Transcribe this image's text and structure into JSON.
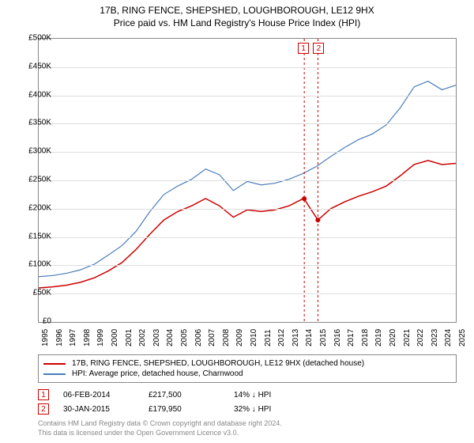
{
  "title": {
    "line1": "17B, RING FENCE, SHEPSHED, LOUGHBOROUGH, LE12 9HX",
    "line2": "Price paid vs. HM Land Registry's House Price Index (HPI)"
  },
  "chart": {
    "type": "line",
    "background_color": "#ffffff",
    "grid_color": "#dddddd",
    "border_color": "#888888",
    "x_years": [
      1995,
      1996,
      1997,
      1998,
      1999,
      2000,
      2001,
      2002,
      2003,
      2004,
      2005,
      2006,
      2007,
      2008,
      2009,
      2010,
      2011,
      2012,
      2013,
      2014,
      2015,
      2016,
      2017,
      2018,
      2019,
      2020,
      2021,
      2022,
      2023,
      2024,
      2025
    ],
    "x_min": 1995,
    "x_max": 2025,
    "y_min": 0,
    "y_max": 500000,
    "y_ticks": [
      0,
      50000,
      100000,
      150000,
      200000,
      250000,
      300000,
      350000,
      400000,
      450000,
      500000
    ],
    "y_tick_labels": [
      "£0",
      "£50K",
      "£100K",
      "£150K",
      "£200K",
      "£250K",
      "£300K",
      "£350K",
      "£400K",
      "£450K",
      "£500K"
    ],
    "series": [
      {
        "name": "property",
        "label": "17B, RING FENCE, SHEPSHED, LOUGHBOROUGH, LE12 9HX (detached house)",
        "color": "#cc0000",
        "line_width": 1.5,
        "data": [
          [
            1995,
            60000
          ],
          [
            1996,
            62000
          ],
          [
            1997,
            65000
          ],
          [
            1998,
            70000
          ],
          [
            1999,
            78000
          ],
          [
            2000,
            90000
          ],
          [
            2001,
            105000
          ],
          [
            2002,
            128000
          ],
          [
            2003,
            155000
          ],
          [
            2004,
            180000
          ],
          [
            2005,
            195000
          ],
          [
            2006,
            205000
          ],
          [
            2007,
            218000
          ],
          [
            2008,
            205000
          ],
          [
            2009,
            185000
          ],
          [
            2010,
            198000
          ],
          [
            2011,
            195000
          ],
          [
            2012,
            198000
          ],
          [
            2013,
            205000
          ],
          [
            2014,
            217500
          ],
          [
            2014.08,
            217500
          ],
          [
            2015.08,
            179950
          ],
          [
            2016,
            200000
          ],
          [
            2017,
            212000
          ],
          [
            2018,
            222000
          ],
          [
            2019,
            230000
          ],
          [
            2020,
            240000
          ],
          [
            2021,
            258000
          ],
          [
            2022,
            278000
          ],
          [
            2023,
            285000
          ],
          [
            2024,
            278000
          ],
          [
            2025,
            280000
          ]
        ]
      },
      {
        "name": "hpi",
        "label": "HPI: Average price, detached house, Charnwood",
        "color": "#4a7ebb",
        "line_width": 1.2,
        "data": [
          [
            1995,
            80000
          ],
          [
            1996,
            82000
          ],
          [
            1997,
            86000
          ],
          [
            1998,
            92000
          ],
          [
            1999,
            102000
          ],
          [
            2000,
            118000
          ],
          [
            2001,
            135000
          ],
          [
            2002,
            160000
          ],
          [
            2003,
            195000
          ],
          [
            2004,
            225000
          ],
          [
            2005,
            240000
          ],
          [
            2006,
            252000
          ],
          [
            2007,
            270000
          ],
          [
            2008,
            260000
          ],
          [
            2009,
            232000
          ],
          [
            2010,
            248000
          ],
          [
            2011,
            242000
          ],
          [
            2012,
            245000
          ],
          [
            2013,
            252000
          ],
          [
            2014,
            262000
          ],
          [
            2015,
            275000
          ],
          [
            2016,
            292000
          ],
          [
            2017,
            308000
          ],
          [
            2018,
            322000
          ],
          [
            2019,
            332000
          ],
          [
            2020,
            348000
          ],
          [
            2021,
            378000
          ],
          [
            2022,
            415000
          ],
          [
            2023,
            425000
          ],
          [
            2024,
            410000
          ],
          [
            2025,
            418000
          ]
        ]
      }
    ],
    "events": [
      {
        "n": "1",
        "year": 2014.1,
        "date": "06-FEB-2014",
        "price": "£217,500",
        "delta": "14% ↓ HPI",
        "point_y": 217500,
        "vline_color": "#cc0000"
      },
      {
        "n": "2",
        "year": 2015.08,
        "date": "30-JAN-2015",
        "price": "£179,950",
        "delta": "32% ↓ HPI",
        "point_y": 179950,
        "vline_color": "#cc0000"
      }
    ],
    "point_marker_color": "#cc0000",
    "point_marker_radius": 3
  },
  "legend": {
    "items": [
      {
        "color": "#cc0000",
        "label": "17B, RING FENCE, SHEPSHED, LOUGHBOROUGH, LE12 9HX (detached house)"
      },
      {
        "color": "#4a7ebb",
        "label": "HPI: Average price, detached house, Charnwood"
      }
    ]
  },
  "footer": {
    "line1": "Contains HM Land Registry data © Crown copyright and database right 2024.",
    "line2": "This data is licensed under the Open Government Licence v3.0."
  }
}
